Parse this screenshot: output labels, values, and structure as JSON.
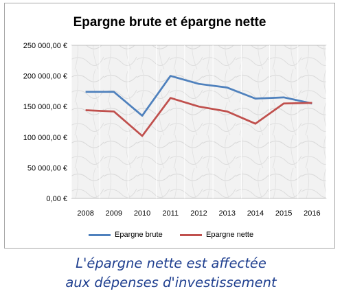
{
  "chart_data": {
    "type": "line",
    "title": "Epargne brute et épargne nette",
    "categories": [
      "2008",
      "2009",
      "2010",
      "2011",
      "2012",
      "2013",
      "2014",
      "2015",
      "2016"
    ],
    "y_tick_labels": [
      "250 000,00 €",
      "200 000,00 €",
      "150 000,00 €",
      "100 000,00 €",
      "50 000,00 €",
      "0,00 €"
    ],
    "ylim": [
      0,
      250000
    ],
    "grid": true,
    "legend_position": "bottom",
    "series": [
      {
        "name": "Epargne brute",
        "color": "#4f81bd",
        "values": [
          174000,
          174000,
          135000,
          200000,
          187000,
          181000,
          163000,
          165000,
          155000
        ]
      },
      {
        "name": "Epargne nette",
        "color": "#c0504d",
        "values": [
          144000,
          142000,
          102000,
          164000,
          150000,
          142000,
          122000,
          155000,
          156000
        ]
      }
    ]
  },
  "caption_lines": [
    "L'épargne nette est affectée",
    "aux dépenses d'investissement"
  ]
}
